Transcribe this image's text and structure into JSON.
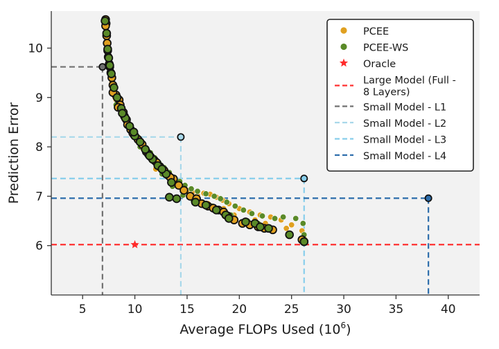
{
  "chart_data": {
    "type": "scatter",
    "xlabel": "Average FLOPs Used (10",
    "xlabel_sup": "6",
    "xlabel_close": ")",
    "ylabel": "Prediction Error",
    "xlim": [
      2,
      43
    ],
    "ylim": [
      5,
      10.75
    ],
    "xticks": [
      5,
      10,
      15,
      20,
      25,
      30,
      35,
      40
    ],
    "yticks": [
      6,
      7,
      8,
      9,
      10
    ],
    "background": "#f2f2f2",
    "grid": false,
    "legend_position": "top-right",
    "series": [
      {
        "name": "PCEE",
        "kind": "points",
        "color": "#e0a020",
        "points": [
          [
            7.2,
            10.55
          ],
          [
            7.25,
            10.45
          ],
          [
            7.3,
            10.3
          ],
          [
            7.35,
            10.15
          ],
          [
            7.4,
            10.0
          ],
          [
            7.45,
            9.85
          ],
          [
            7.5,
            9.75
          ],
          [
            7.6,
            9.6
          ],
          [
            7.7,
            9.45
          ],
          [
            7.8,
            9.3
          ],
          [
            8.0,
            9.1
          ],
          [
            8.2,
            8.95
          ],
          [
            8.4,
            8.85
          ],
          [
            8.6,
            8.75
          ],
          [
            8.8,
            8.65
          ],
          [
            9.0,
            8.55
          ],
          [
            9.2,
            8.45
          ],
          [
            9.5,
            8.35
          ],
          [
            9.8,
            8.25
          ],
          [
            10.2,
            8.15
          ],
          [
            10.6,
            8.05
          ],
          [
            11.0,
            7.9
          ],
          [
            11.4,
            7.8
          ],
          [
            11.8,
            7.7
          ],
          [
            12.2,
            7.6
          ],
          [
            12.6,
            7.5
          ],
          [
            13.0,
            7.42
          ],
          [
            13.5,
            7.35
          ],
          [
            14.0,
            7.25
          ],
          [
            14.5,
            7.18
          ],
          [
            15.0,
            7.12
          ],
          [
            15.5,
            7.08
          ],
          [
            16.0,
            7.02
          ],
          [
            16.6,
            7.06
          ],
          [
            17.2,
            7.04
          ],
          [
            17.8,
            6.98
          ],
          [
            18.4,
            6.92
          ],
          [
            19.0,
            6.85
          ],
          [
            20.0,
            6.75
          ],
          [
            21.0,
            6.68
          ],
          [
            22.0,
            6.62
          ],
          [
            23.0,
            6.58
          ],
          [
            24.0,
            6.52
          ],
          [
            25.0,
            6.42
          ],
          [
            26.0,
            6.3
          ],
          [
            26.2,
            6.15
          ],
          [
            8.1,
            9.0
          ],
          [
            8.3,
            8.8
          ],
          [
            9.1,
            8.6
          ],
          [
            10.0,
            8.3
          ],
          [
            10.8,
            7.95
          ],
          [
            12.0,
            7.55
          ],
          [
            13.8,
            7.3
          ],
          [
            15.8,
            6.95
          ],
          [
            17.0,
            6.85
          ],
          [
            18.5,
            6.75
          ],
          [
            19.5,
            6.62
          ],
          [
            21.5,
            6.52
          ],
          [
            22.5,
            6.45
          ],
          [
            24.5,
            6.35
          ]
        ]
      },
      {
        "name": "PCEE-WS",
        "kind": "points",
        "color": "#5a8a28",
        "points": [
          [
            7.2,
            10.5
          ],
          [
            7.25,
            10.35
          ],
          [
            7.3,
            10.2
          ],
          [
            7.35,
            10.05
          ],
          [
            7.45,
            9.9
          ],
          [
            7.55,
            9.7
          ],
          [
            7.65,
            9.55
          ],
          [
            7.8,
            9.4
          ],
          [
            7.9,
            9.25
          ],
          [
            8.1,
            9.05
          ],
          [
            8.3,
            8.9
          ],
          [
            8.5,
            8.8
          ],
          [
            8.7,
            8.7
          ],
          [
            9.0,
            8.6
          ],
          [
            9.3,
            8.5
          ],
          [
            9.6,
            8.4
          ],
          [
            9.9,
            8.3
          ],
          [
            10.3,
            8.2
          ],
          [
            10.7,
            8.1
          ],
          [
            11.1,
            7.98
          ],
          [
            11.5,
            7.88
          ],
          [
            11.9,
            7.78
          ],
          [
            12.3,
            7.68
          ],
          [
            12.8,
            7.58
          ],
          [
            13.3,
            7.48
          ],
          [
            13.8,
            7.38
          ],
          [
            14.3,
            7.3
          ],
          [
            14.8,
            7.22
          ],
          [
            15.4,
            7.15
          ],
          [
            16.0,
            7.1
          ],
          [
            16.8,
            7.05
          ],
          [
            17.6,
            7.0
          ],
          [
            18.2,
            6.95
          ],
          [
            18.8,
            6.88
          ],
          [
            19.6,
            6.8
          ],
          [
            20.4,
            6.72
          ],
          [
            21.2,
            6.65
          ],
          [
            22.2,
            6.6
          ],
          [
            23.4,
            6.55
          ],
          [
            24.2,
            6.58
          ],
          [
            25.4,
            6.55
          ],
          [
            26.1,
            6.45
          ],
          [
            26.2,
            6.22
          ],
          [
            8.2,
            8.85
          ],
          [
            9.4,
            8.45
          ],
          [
            10.5,
            8.0
          ],
          [
            11.6,
            7.72
          ],
          [
            12.6,
            7.45
          ],
          [
            13.6,
            7.2
          ],
          [
            14.6,
            7.02
          ],
          [
            15.6,
            6.9
          ],
          [
            16.5,
            6.85
          ],
          [
            17.4,
            6.8
          ],
          [
            18.0,
            6.7
          ],
          [
            19.2,
            6.62
          ],
          [
            20.8,
            6.5
          ],
          [
            21.8,
            6.45
          ],
          [
            22.8,
            6.38
          ],
          [
            24.8,
            6.25
          ]
        ]
      },
      {
        "name": "",
        "kind": "outlined-points",
        "color": "#e0a020",
        "points": [
          [
            7.2,
            10.58
          ],
          [
            7.25,
            10.5
          ],
          [
            7.2,
            10.45
          ],
          [
            7.3,
            10.25
          ],
          [
            7.35,
            10.1
          ],
          [
            7.4,
            9.95
          ],
          [
            7.45,
            9.82
          ],
          [
            7.55,
            9.68
          ],
          [
            7.6,
            9.62
          ],
          [
            7.7,
            9.5
          ],
          [
            7.8,
            9.4
          ],
          [
            7.9,
            9.25
          ],
          [
            8.2,
            9.05
          ],
          [
            8.5,
            8.95
          ],
          [
            8.6,
            8.85
          ],
          [
            8.9,
            8.7
          ],
          [
            9.0,
            8.62
          ],
          [
            9.2,
            8.55
          ],
          [
            9.3,
            8.45
          ],
          [
            9.6,
            8.35
          ],
          [
            9.9,
            8.25
          ],
          [
            10.3,
            8.15
          ],
          [
            10.7,
            8.05
          ],
          [
            11.1,
            7.9
          ],
          [
            11.5,
            7.8
          ],
          [
            11.9,
            7.72
          ],
          [
            12.4,
            7.6
          ],
          [
            12.8,
            7.52
          ],
          [
            13.2,
            7.42
          ],
          [
            13.7,
            7.35
          ],
          [
            14.2,
            7.22
          ],
          [
            14.7,
            7.12
          ],
          [
            15.3,
            7.0
          ],
          [
            15.9,
            6.95
          ],
          [
            16.4,
            6.85
          ],
          [
            17.0,
            6.8
          ],
          [
            17.5,
            6.76
          ],
          [
            18.0,
            6.72
          ],
          [
            18.5,
            6.68
          ],
          [
            18.9,
            6.6
          ],
          [
            19.5,
            6.52
          ],
          [
            20.3,
            6.45
          ],
          [
            21.0,
            6.42
          ],
          [
            21.8,
            6.38
          ],
          [
            22.4,
            6.35
          ],
          [
            23.2,
            6.32
          ],
          [
            26.0,
            6.12
          ],
          [
            26.2,
            6.08
          ],
          [
            7.9,
            9.1
          ],
          [
            8.4,
            8.8
          ],
          [
            9.8,
            8.28
          ],
          [
            11.3,
            7.85
          ],
          [
            12.1,
            7.68
          ],
          [
            13.4,
            7.38
          ]
        ]
      },
      {
        "name": "",
        "kind": "outlined-points",
        "color": "#5a8a28",
        "points": [
          [
            7.15,
            10.55
          ],
          [
            7.3,
            10.3
          ],
          [
            7.4,
            9.98
          ],
          [
            7.5,
            9.8
          ],
          [
            7.6,
            9.65
          ],
          [
            7.75,
            9.48
          ],
          [
            8.0,
            9.2
          ],
          [
            8.3,
            9.0
          ],
          [
            8.7,
            8.78
          ],
          [
            9.1,
            8.58
          ],
          [
            9.5,
            8.42
          ],
          [
            10.0,
            8.22
          ],
          [
            10.5,
            8.1
          ],
          [
            11.0,
            7.95
          ],
          [
            11.7,
            7.75
          ],
          [
            12.2,
            7.62
          ],
          [
            13.0,
            7.45
          ],
          [
            13.5,
            7.28
          ],
          [
            13.3,
            6.98
          ],
          [
            14.0,
            6.95
          ],
          [
            15.8,
            6.88
          ],
          [
            16.8,
            6.82
          ],
          [
            17.8,
            6.72
          ],
          [
            18.7,
            6.62
          ],
          [
            19.0,
            6.55
          ],
          [
            20.6,
            6.48
          ],
          [
            21.5,
            6.45
          ],
          [
            22.0,
            6.38
          ],
          [
            22.8,
            6.35
          ],
          [
            24.8,
            6.22
          ],
          [
            26.2,
            6.08
          ],
          [
            8.8,
            8.68
          ],
          [
            9.9,
            8.3
          ],
          [
            11.4,
            7.82
          ],
          [
            12.6,
            7.55
          ]
        ]
      },
      {
        "name": "Oracle",
        "kind": "star",
        "color": "#ff2a2a",
        "points": [
          [
            10.0,
            6.02
          ]
        ]
      },
      {
        "name": "Large Model (Full -\n 8 Layers)",
        "kind": "hline",
        "color": "#ff3030",
        "y": 6.02
      },
      {
        "name": "Small Model - L1",
        "kind": "corner",
        "color": "#707070",
        "x": 6.9,
        "y": 9.62
      },
      {
        "name": "Small Model - L2",
        "kind": "corner",
        "color": "#a8d8ea",
        "x": 14.4,
        "y": 8.2
      },
      {
        "name": "Small Model - L3",
        "kind": "corner",
        "color": "#87ceeb",
        "x": 26.2,
        "y": 7.36
      },
      {
        "name": "Small Model - L4",
        "kind": "corner",
        "color": "#2e6eac",
        "x": 38.1,
        "y": 6.96
      }
    ]
  }
}
